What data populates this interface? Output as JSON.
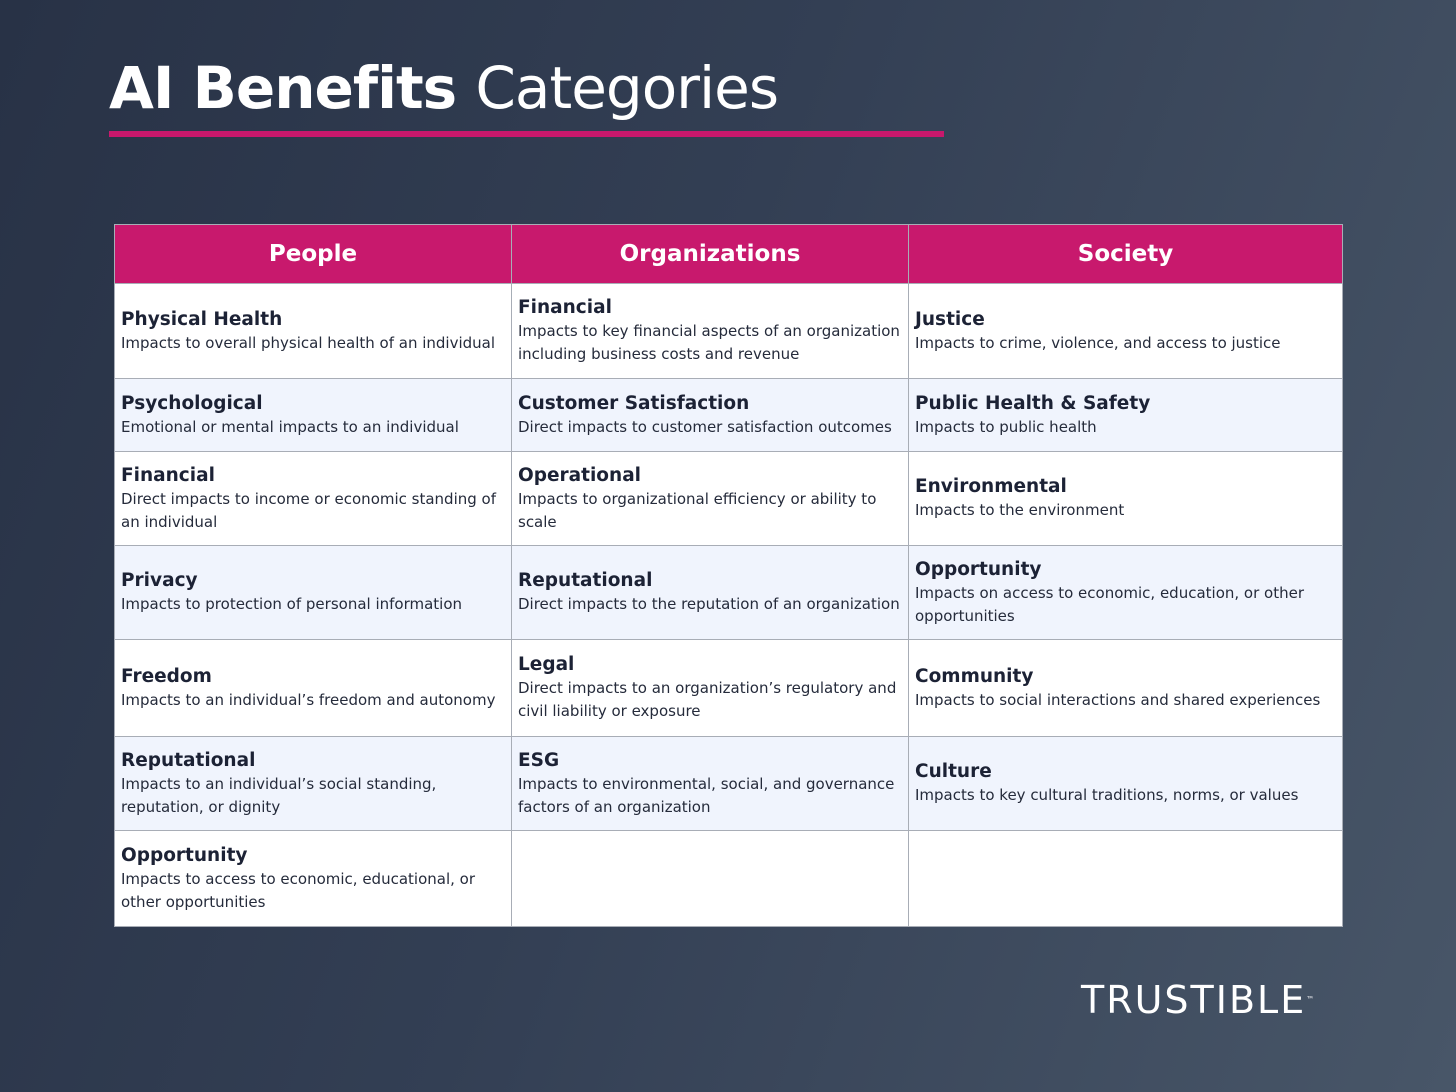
{
  "title": {
    "bold": "AI Benefits",
    "light": "Categories"
  },
  "colors": {
    "accent": "#c8196d",
    "background": "#2f3a4e",
    "row_alt": "#f0f4fd"
  },
  "table": {
    "headers": [
      "People",
      "Organizations",
      "Society"
    ],
    "rows": [
      [
        {
          "title": "Physical Health",
          "desc": "Impacts to overall physical health of an individual"
        },
        {
          "title": "Financial",
          "desc": "Impacts to key financial aspects of an organization including business costs and revenue"
        },
        {
          "title": "Justice",
          "desc": "Impacts to crime, violence, and access to justice"
        }
      ],
      [
        {
          "title": "Psychological",
          "desc": "Emotional or mental impacts to an individual"
        },
        {
          "title": "Customer Satisfaction",
          "desc": "Direct impacts to customer satisfaction outcomes"
        },
        {
          "title": "Public Health & Safety",
          "desc": "Impacts to public health"
        }
      ],
      [
        {
          "title": "Financial",
          "desc": "Direct impacts to income or economic standing of an individual"
        },
        {
          "title": "Operational",
          "desc": "Impacts to organizational efficiency or ability to scale"
        },
        {
          "title": "Environmental",
          "desc": "Impacts to the environment"
        }
      ],
      [
        {
          "title": "Privacy",
          "desc": "Impacts to protection of personal information"
        },
        {
          "title": "Reputational",
          "desc": "Direct impacts to the reputation of an organization"
        },
        {
          "title": "Opportunity",
          "desc": "Impacts on access to economic, education, or other opportunities"
        }
      ],
      [
        {
          "title": "Freedom",
          "desc": "Impacts to an individual’s freedom and autonomy"
        },
        {
          "title": "Legal",
          "desc": "Direct impacts to an organization’s regulatory and civil liability or exposure"
        },
        {
          "title": "Community",
          "desc": "Impacts to social interactions and shared experiences"
        }
      ],
      [
        {
          "title": "Reputational",
          "desc": "Impacts to an individual’s social standing, reputation, or dignity"
        },
        {
          "title": "ESG",
          "desc": "Impacts to environmental, social, and governance factors of an organization"
        },
        {
          "title": "Culture",
          "desc": "Impacts to key cultural traditions, norms, or values"
        }
      ],
      [
        {
          "title": "Opportunity",
          "desc": "Impacts to access to economic, educational, or other opportunities"
        },
        {
          "title": "",
          "desc": ""
        },
        {
          "title": "",
          "desc": ""
        }
      ]
    ]
  },
  "logo": {
    "text": "TRUSTIBLE",
    "mark": "™"
  }
}
